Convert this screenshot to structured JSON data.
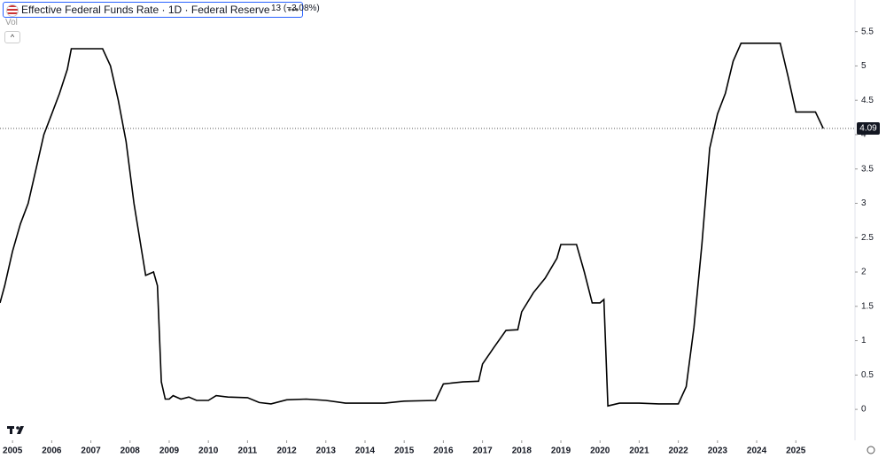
{
  "header": {
    "title": "Effective Federal Funds Rate · 1D · Federal Reserve",
    "change": "13 (−3.08%)",
    "volume_label": "Vol"
  },
  "chart_data": {
    "type": "line",
    "color": "#000000",
    "x": [
      2004.68,
      2004.8,
      2005.0,
      2005.2,
      2005.4,
      2005.6,
      2005.8,
      2006.0,
      2006.2,
      2006.4,
      2006.5,
      2006.9,
      2007.3,
      2007.5,
      2007.7,
      2007.9,
      2008.1,
      2008.3,
      2008.4,
      2008.6,
      2008.7,
      2008.8,
      2008.9,
      2009.0,
      2009.1,
      2009.3,
      2009.5,
      2009.7,
      2010.0,
      2010.2,
      2010.5,
      2011.0,
      2011.3,
      2011.6,
      2012.0,
      2012.5,
      2013.0,
      2013.5,
      2014.0,
      2014.5,
      2015.0,
      2015.8,
      2016.0,
      2016.5,
      2016.9,
      2017.0,
      2017.3,
      2017.6,
      2017.9,
      2018.0,
      2018.3,
      2018.6,
      2018.9,
      2019.0,
      2019.4,
      2019.6,
      2019.8,
      2020.0,
      2020.1,
      2020.2,
      2020.5,
      2021.0,
      2021.5,
      2022.0,
      2022.2,
      2022.4,
      2022.6,
      2022.8,
      2023.0,
      2023.2,
      2023.4,
      2023.6,
      2024.0,
      2024.6,
      2024.8,
      2025.0,
      2025.5,
      2025.7
    ],
    "values": [
      1.55,
      1.8,
      2.3,
      2.7,
      3.0,
      3.5,
      4.0,
      4.3,
      4.6,
      4.95,
      5.25,
      5.25,
      5.25,
      5.0,
      4.5,
      3.9,
      3.0,
      2.3,
      1.95,
      2.0,
      1.8,
      0.4,
      0.15,
      0.15,
      0.2,
      0.15,
      0.18,
      0.13,
      0.13,
      0.2,
      0.18,
      0.17,
      0.1,
      0.08,
      0.14,
      0.15,
      0.13,
      0.09,
      0.09,
      0.09,
      0.12,
      0.13,
      0.37,
      0.4,
      0.41,
      0.66,
      0.91,
      1.15,
      1.16,
      1.42,
      1.7,
      1.91,
      2.2,
      2.4,
      2.4,
      2.0,
      1.55,
      1.55,
      1.6,
      0.05,
      0.09,
      0.09,
      0.08,
      0.08,
      0.33,
      1.2,
      2.4,
      3.8,
      4.3,
      4.6,
      5.07,
      5.33,
      5.33,
      5.33,
      4.85,
      4.33,
      4.33,
      4.09
    ],
    "current_value": 4.09,
    "xlim": [
      2004.68,
      2026.51
    ],
    "ylim": [
      -0.45,
      5.96
    ],
    "xticks": [
      2005,
      2006,
      2007,
      2008,
      2009,
      2010,
      2011,
      2012,
      2013,
      2014,
      2015,
      2016,
      2017,
      2018,
      2019,
      2020,
      2021,
      2022,
      2023,
      2024,
      2025
    ],
    "yticks": [
      0,
      0.5,
      1,
      1.5,
      2,
      2.5,
      3,
      3.5,
      4,
      4.5,
      5,
      5.5
    ]
  }
}
